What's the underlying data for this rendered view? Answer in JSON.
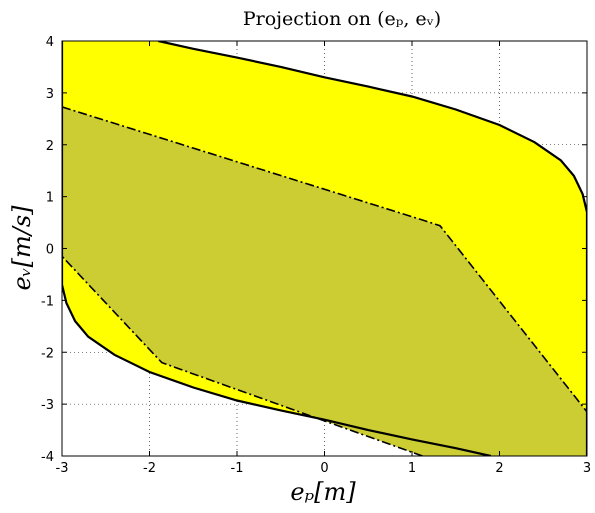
{
  "chart_data": {
    "type": "area",
    "title": "Projection on (eₚ, eᵥ)",
    "xlabel": "eₚ[m]",
    "ylabel": "eᵥ[m/s]",
    "xlim": [
      -3,
      3
    ],
    "ylim": [
      -4,
      4
    ],
    "xticks": [
      -3,
      -2,
      -1,
      0,
      1,
      2,
      3
    ],
    "yticks": [
      -4,
      -3,
      -2,
      -1,
      0,
      1,
      2,
      3,
      4
    ],
    "xtick_labels": [
      "-3",
      "-2",
      "-1",
      "0",
      "1",
      "2",
      "3"
    ],
    "ytick_labels": [
      "-4",
      "-3",
      "-2",
      "-1",
      "0",
      "1",
      "2",
      "3",
      "4"
    ],
    "grid": true,
    "series": [
      {
        "role": "outer region",
        "color": "#ffff00",
        "outline": "solid",
        "x": [
          -3,
          -1.9,
          -1.5,
          -1.0,
          -0.5,
          0.0,
          0.5,
          1.0,
          1.5,
          2.0,
          2.4,
          2.7,
          2.85,
          2.95,
          3.0,
          3,
          1.9,
          1.5,
          1.0,
          0.5,
          0.0,
          -0.5,
          -1.0,
          -1.5,
          -2.0,
          -2.4,
          -2.7,
          -2.85,
          -2.95,
          -3.0,
          -3
        ],
        "y": [
          4,
          4,
          3.85,
          3.68,
          3.5,
          3.3,
          3.12,
          2.93,
          2.68,
          2.38,
          2.05,
          1.7,
          1.4,
          1.05,
          0.7,
          -4,
          -4,
          -3.85,
          -3.68,
          -3.5,
          -3.3,
          -3.12,
          -2.93,
          -2.68,
          -2.38,
          -2.05,
          -1.7,
          -1.4,
          -1.05,
          -0.7,
          4
        ]
      },
      {
        "role": "inner region",
        "color": "#cccc33",
        "outline": "dash-dot",
        "x": [
          -3,
          1.12,
          1.32,
          3,
          3,
          1.12,
          -1.86,
          -3
        ],
        "y": [
          2.73,
          0.55,
          0.44,
          -3.15,
          -4,
          -4,
          -2.2,
          -0.15
        ]
      }
    ]
  }
}
